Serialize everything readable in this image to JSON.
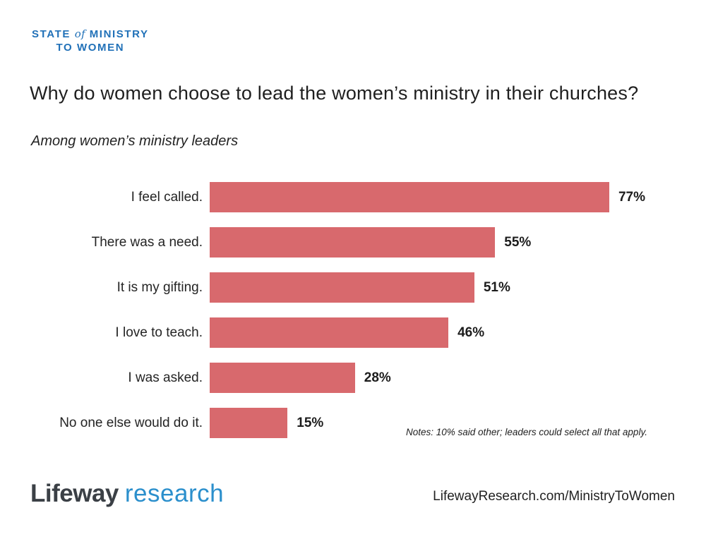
{
  "brand": {
    "line1_pre": "STATE",
    "line1_of": "of",
    "line1_post": "MINISTRY",
    "line2": "TO WOMEN",
    "accent_blue": "#2171B8"
  },
  "title": "Why do women choose to lead the women’s ministry in their churches?",
  "subtitle": "Among women’s ministry leaders",
  "chart_data": {
    "type": "bar",
    "orientation": "horizontal",
    "categories": [
      "I feel called.",
      "There was a need.",
      "It is my gifting.",
      "I love to teach.",
      "I was asked.",
      "No one else would do it."
    ],
    "values": [
      77,
      55,
      51,
      46,
      28,
      15
    ],
    "value_labels": [
      "77%",
      "55%",
      "51%",
      "46%",
      "28%",
      "15%"
    ],
    "bar_color": "#D8696D",
    "xlim": [
      0,
      100
    ],
    "grid": false,
    "legend": "none",
    "title": "Why do women choose to lead the women’s ministry in their churches?",
    "subtitle": "Among women’s ministry leaders",
    "xlabel": "",
    "ylabel": ""
  },
  "notes": "Notes: 10% said other; leaders could select all that apply.",
  "footer": {
    "logo_lifeway": "Lifeway",
    "logo_research": "research",
    "url": "LifewayResearch.com/MinistryToWomen"
  }
}
